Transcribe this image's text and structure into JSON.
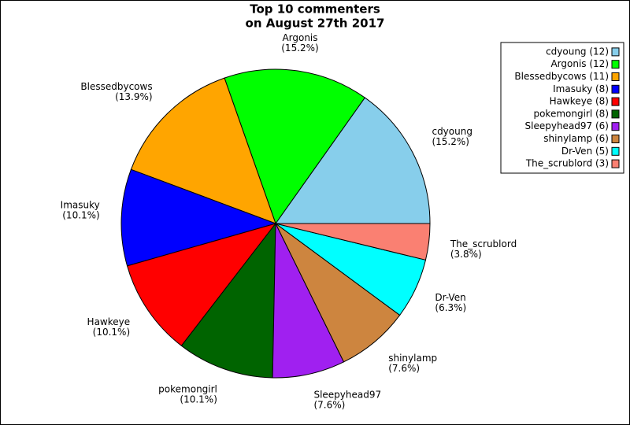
{
  "chart_data": {
    "type": "pie",
    "title": [
      "Top 10 commenters",
      "on August 27th 2017"
    ],
    "categories": [
      "cdyoung",
      "Argonis",
      "Blessedbycows",
      "Imasuky",
      "Hawkeye",
      "pokemongirl",
      "Sleepyhead97",
      "shinylamp",
      "Dr-Ven",
      "The_scrublord"
    ],
    "values": [
      12,
      12,
      11,
      8,
      8,
      8,
      6,
      6,
      5,
      3
    ],
    "value_labels": [
      "(15.2%)",
      "(15.2%)",
      "(13.9%)",
      "(10.1%)",
      "(10.1%)",
      "(10.1%)",
      "(7.6%)",
      "(7.6%)",
      "(6.3%)",
      "(3.8%)"
    ],
    "legend_labels": [
      "cdyoung (12)",
      "Argonis (12)",
      "Blessedbycows (11)",
      "Imasuky (8)",
      "Hawkeye (8)",
      "pokemongirl (8)",
      "Sleepyhead97 (6)",
      "shinylamp (6)",
      "Dr-Ven (5)",
      "The_scrublord (3)"
    ],
    "colors": [
      "#87ceeb",
      "#00ff00",
      "#ffa500",
      "#0000ff",
      "#ff0000",
      "#006400",
      "#a020f0",
      "#cd853f",
      "#00ffff",
      "#fa8072"
    ],
    "legend": "upper right"
  }
}
